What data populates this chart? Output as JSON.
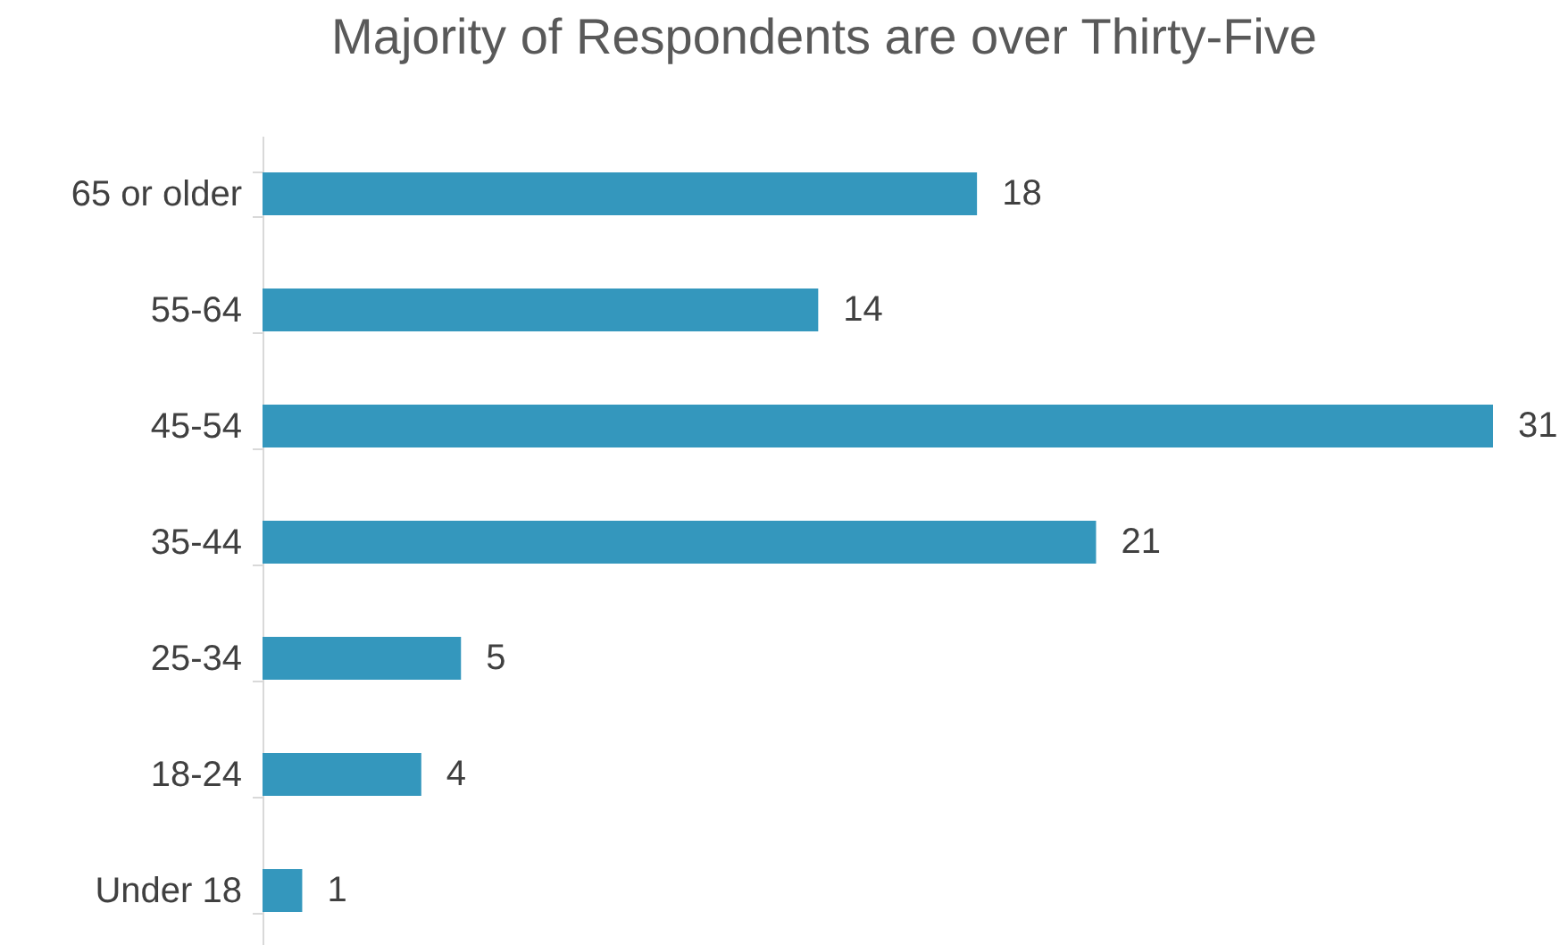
{
  "chart_data": {
    "type": "bar",
    "title": "Majority of Respondents are over Thirty-Five",
    "orientation": "horizontal",
    "data_labels": true,
    "color": "#3497bd",
    "categories": [
      "65 or older",
      "55-64",
      "45-54",
      "35-44",
      "25-34",
      "18-24",
      "Under 18"
    ],
    "values": [
      18,
      14,
      31,
      21,
      5,
      4,
      1
    ]
  }
}
